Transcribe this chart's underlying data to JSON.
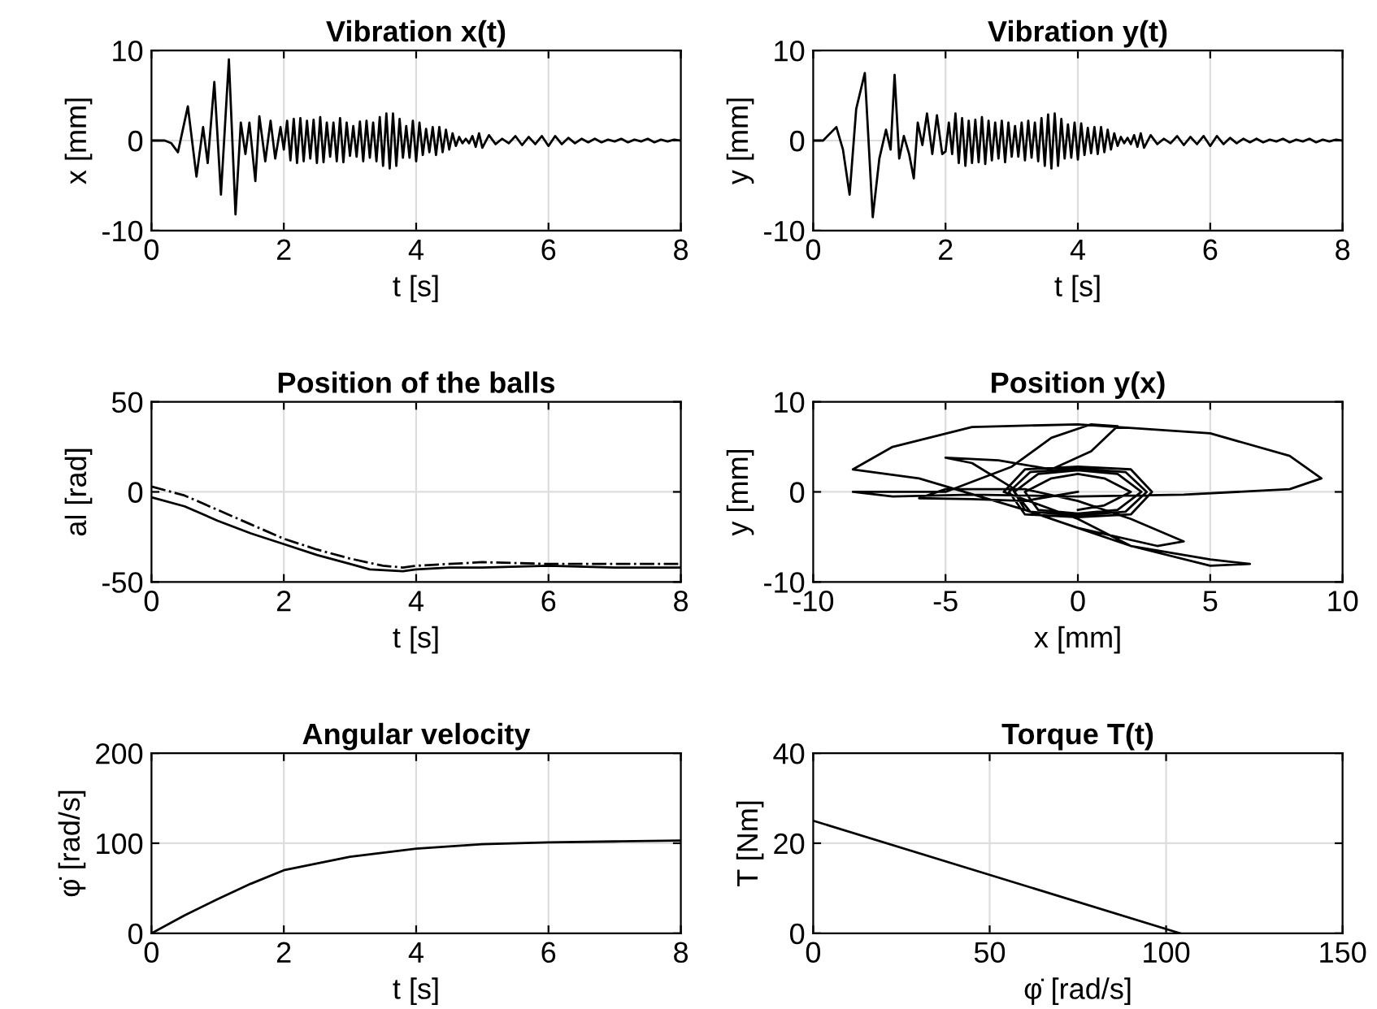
{
  "chart_data": [
    {
      "type": "line",
      "title": "Vibration x(t)",
      "xlabel": "t [s]",
      "ylabel": "x [mm]",
      "xlim": [
        0,
        8
      ],
      "ylim": [
        -10,
        10
      ],
      "xticks": [
        0,
        2,
        4,
        6,
        8
      ],
      "yticks": [
        -10,
        0,
        10
      ],
      "grid": true,
      "series": [
        {
          "color": "#000000",
          "line_style": "solid",
          "x": [
            0,
            0.2,
            0.3,
            0.4,
            0.55,
            0.68,
            0.78,
            0.85,
            0.95,
            1.05,
            1.17,
            1.27,
            1.35,
            1.42,
            1.48,
            1.57,
            1.63,
            1.72,
            1.8,
            1.87,
            1.95,
            2.0,
            2.05,
            2.1,
            2.15,
            2.2,
            2.25,
            2.3,
            2.35,
            2.4,
            2.45,
            2.5,
            2.55,
            2.6,
            2.65,
            2.7,
            2.75,
            2.8,
            2.85,
            2.9,
            2.95,
            3.0,
            3.05,
            3.1,
            3.15,
            3.2,
            3.25,
            3.3,
            3.35,
            3.4,
            3.45,
            3.5,
            3.55,
            3.6,
            3.65,
            3.7,
            3.75,
            3.8,
            3.85,
            3.9,
            3.95,
            4.0,
            4.05,
            4.1,
            4.15,
            4.2,
            4.25,
            4.3,
            4.35,
            4.4,
            4.45,
            4.5,
            4.55,
            4.6,
            4.65,
            4.7,
            4.75,
            4.8,
            4.85,
            4.9,
            4.95,
            5.0,
            5.1,
            5.2,
            5.3,
            5.4,
            5.5,
            5.6,
            5.7,
            5.8,
            5.9,
            6.0,
            6.1,
            6.2,
            6.3,
            6.4,
            6.5,
            6.6,
            6.7,
            6.8,
            6.9,
            7.0,
            7.1,
            7.2,
            7.3,
            7.4,
            7.5,
            7.6,
            7.7,
            7.8,
            7.9,
            8.0
          ],
          "values": [
            0,
            0,
            -0.3,
            -1.3,
            3.8,
            -4,
            1.5,
            -2.5,
            6.5,
            -6,
            9,
            -8.2,
            2,
            -1.5,
            2,
            -4.5,
            2.7,
            -2.3,
            2.2,
            -2,
            1.5,
            -1.0,
            2.2,
            -2.2,
            2.4,
            -2.5,
            2.5,
            -2.3,
            2.2,
            -2.0,
            2.3,
            -2.5,
            2.6,
            -2.4,
            2.0,
            -1.8,
            2.0,
            -2.3,
            2.5,
            -2.4,
            2.0,
            -1.7,
            1.6,
            -1.8,
            2.1,
            -2.3,
            2.2,
            -1.9,
            2.0,
            -2.3,
            2.6,
            -2.8,
            3.0,
            -3.1,
            3.0,
            -2.8,
            2.4,
            -1.9,
            1.6,
            -1.9,
            2.2,
            -2.3,
            2.0,
            -1.6,
            1.3,
            -1.3,
            1.5,
            -1.6,
            1.5,
            -1.3,
            1.2,
            -1.0,
            0.8,
            -0.6,
            0.4,
            -0.3,
            0.2,
            -0.3,
            0.5,
            -0.7,
            0.8,
            -0.8,
            0.6,
            -0.4,
            0.2,
            -0.3,
            0.5,
            -0.5,
            0.4,
            -0.4,
            0.5,
            -0.6,
            0.5,
            -0.4,
            0.3,
            -0.3,
            0.2,
            -0.2,
            0.2,
            -0.2,
            0.1,
            -0.1,
            0.2,
            -0.2,
            0.1,
            -0.1,
            0.2,
            -0.2,
            0.1,
            -0.1,
            0.1,
            0
          ]
        }
      ]
    },
    {
      "type": "line",
      "title": "Vibration y(t)",
      "xlabel": "t [s]",
      "ylabel": "y [mm]",
      "xlim": [
        0,
        8
      ],
      "ylim": [
        -10,
        10
      ],
      "xticks": [
        0,
        2,
        4,
        6,
        8
      ],
      "yticks": [
        -10,
        0,
        10
      ],
      "grid": true,
      "series": [
        {
          "color": "#000000",
          "line_style": "solid",
          "x": [
            0,
            0.15,
            0.35,
            0.45,
            0.55,
            0.65,
            0.78,
            0.9,
            1.0,
            1.1,
            1.17,
            1.23,
            1.3,
            1.37,
            1.45,
            1.52,
            1.58,
            1.65,
            1.72,
            1.8,
            1.87,
            1.95,
            2.0,
            2.05,
            2.1,
            2.15,
            2.2,
            2.25,
            2.3,
            2.35,
            2.4,
            2.45,
            2.5,
            2.55,
            2.6,
            2.65,
            2.7,
            2.75,
            2.8,
            2.85,
            2.9,
            2.95,
            3.0,
            3.05,
            3.1,
            3.15,
            3.2,
            3.25,
            3.3,
            3.35,
            3.4,
            3.45,
            3.5,
            3.55,
            3.6,
            3.65,
            3.7,
            3.75,
            3.8,
            3.85,
            3.9,
            3.95,
            4.0,
            4.05,
            4.1,
            4.15,
            4.2,
            4.25,
            4.3,
            4.35,
            4.4,
            4.45,
            4.5,
            4.55,
            4.6,
            4.65,
            4.7,
            4.75,
            4.8,
            4.85,
            4.9,
            4.95,
            5.0,
            5.1,
            5.2,
            5.3,
            5.4,
            5.5,
            5.6,
            5.7,
            5.8,
            5.9,
            6.0,
            6.1,
            6.2,
            6.3,
            6.4,
            6.5,
            6.6,
            6.7,
            6.8,
            6.9,
            7.0,
            7.1,
            7.2,
            7.3,
            7.4,
            7.5,
            7.6,
            7.7,
            7.8,
            7.9,
            8.0
          ],
          "values": [
            0,
            0,
            1.5,
            -1,
            -6,
            3.5,
            7.5,
            -8.5,
            -2,
            1.2,
            -1,
            7.3,
            -2,
            0.5,
            -1.5,
            -4.2,
            2,
            -0.5,
            3,
            -1.5,
            2.8,
            -1.5,
            -1.2,
            2.0,
            -1.5,
            3.0,
            -2.5,
            2.5,
            -2.8,
            2.2,
            -2.5,
            2.3,
            -2.4,
            2.6,
            -2.6,
            2.2,
            -2.2,
            2.0,
            -2.0,
            2.2,
            -2.4,
            2.0,
            -1.8,
            1.6,
            -1.8,
            2.0,
            -2.2,
            2.2,
            -1.9,
            2.0,
            -2.3,
            2.5,
            -2.8,
            2.9,
            -3.1,
            3.0,
            -2.8,
            2.4,
            -2.0,
            1.8,
            -1.9,
            2.0,
            -2.1,
            1.9,
            -1.6,
            1.4,
            -1.4,
            1.5,
            -1.5,
            1.5,
            -1.3,
            1.2,
            -1.0,
            0.8,
            -0.6,
            0.4,
            -0.3,
            0.3,
            -0.4,
            0.6,
            -0.7,
            0.8,
            -0.8,
            0.6,
            -0.4,
            0.2,
            -0.3,
            0.5,
            -0.5,
            0.4,
            -0.4,
            0.5,
            -0.6,
            0.5,
            -0.4,
            0.3,
            -0.3,
            0.2,
            -0.2,
            0.2,
            -0.2,
            0.1,
            -0.1,
            0.2,
            -0.2,
            0.1,
            -0.1,
            0.2,
            -0.2,
            0.1,
            -0.1,
            0.1,
            0
          ]
        }
      ]
    },
    {
      "type": "line",
      "title": "Position of the balls",
      "xlabel": "t [s]",
      "ylabel": "al [rad]",
      "xlim": [
        0,
        8
      ],
      "ylim": [
        -50,
        50
      ],
      "xticks": [
        0,
        2,
        4,
        6,
        8
      ],
      "yticks": [
        -50,
        0,
        50
      ],
      "grid": true,
      "series": [
        {
          "color": "#000000",
          "line_style": "solid",
          "x": [
            0,
            0.5,
            1,
            1.5,
            2,
            2.5,
            3,
            3.3,
            3.8,
            4,
            4.5,
            5,
            6,
            7,
            8
          ],
          "values": [
            -3,
            -8,
            -16,
            -23,
            -29,
            -35,
            -40,
            -43,
            -44,
            -43,
            -42,
            -42,
            -41,
            -42,
            -42
          ]
        },
        {
          "color": "#000000",
          "line_style": "dashdot",
          "x": [
            0,
            0.5,
            1,
            1.5,
            2,
            2.5,
            3,
            3.5,
            3.8,
            4,
            4.5,
            5,
            6,
            7,
            8
          ],
          "values": [
            3,
            -2,
            -10,
            -18,
            -26,
            -32,
            -37,
            -41,
            -42,
            -41,
            -40,
            -39,
            -40,
            -40,
            -40
          ]
        }
      ]
    },
    {
      "type": "line",
      "title": "Position y(x)",
      "xlabel": "x [mm]",
      "ylabel": "y [mm]",
      "xlim": [
        -10,
        10
      ],
      "ylim": [
        -10,
        10
      ],
      "xticks": [
        -10,
        -5,
        0,
        5,
        10
      ],
      "yticks": [
        -10,
        0,
        10
      ],
      "grid": true,
      "series": [
        {
          "color": "#000000",
          "line_style": "solid",
          "x": [
            0,
            -2,
            -4,
            -6,
            -5,
            -2,
            0,
            2,
            4,
            3,
            0,
            -2,
            -2.5,
            -4,
            -5,
            -3,
            -1,
            0.5,
            1.5,
            0.5,
            -1,
            -2.5,
            -5,
            -8,
            -8.5,
            -7,
            -4,
            0,
            4,
            8,
            9.2,
            8,
            5,
            0,
            -4,
            -7,
            -8.5,
            -6,
            -2,
            0,
            2,
            5,
            6.5,
            5,
            2,
            0,
            -2.8,
            -2,
            0,
            2,
            2.8,
            2,
            0,
            -2,
            -2.6,
            -1.8,
            0,
            1.8,
            2.6,
            1.8,
            0,
            -1.8,
            -2.4,
            -1.5,
            0,
            1.5,
            2.4,
            1.5,
            0,
            -1.5,
            -2,
            -1,
            0,
            1,
            2,
            1,
            0
          ],
          "values": [
            0,
            -1,
            -0.8,
            -0.7,
            0.3,
            0.3,
            -1,
            -3,
            -5.5,
            -6,
            -4,
            -2,
            0.5,
            3.2,
            3.8,
            3.5,
            2.5,
            4.5,
            7.3,
            7.5,
            6,
            2.8,
            0,
            0,
            0,
            -0.5,
            -0.3,
            -0.5,
            -0.3,
            0.3,
            1.5,
            4,
            6.5,
            7.5,
            7.2,
            5,
            2.5,
            1.5,
            -2,
            -4,
            -6,
            -7.5,
            -8,
            -8.2,
            -6,
            -3,
            0,
            2.5,
            2.8,
            2.5,
            0,
            -2.5,
            -2.8,
            -2.5,
            0,
            2.2,
            2.6,
            2.2,
            0,
            -2.2,
            -2.6,
            -2.2,
            0,
            2,
            2.4,
            2,
            0,
            -2,
            -2.4,
            -2,
            0,
            1.5,
            2,
            1.5,
            0,
            -1.5,
            -2
          ]
        }
      ]
    },
    {
      "type": "line",
      "title": "Angular velocity",
      "xlabel": "t [s]",
      "ylabel": "φ̇ [rad/s]",
      "xlim": [
        0,
        8
      ],
      "ylim": [
        0,
        200
      ],
      "xticks": [
        0,
        2,
        4,
        6,
        8
      ],
      "yticks": [
        0,
        100,
        200
      ],
      "grid": true,
      "series": [
        {
          "color": "#000000",
          "line_style": "solid",
          "x": [
            0,
            0.5,
            1,
            1.5,
            2,
            3,
            4,
            5,
            6,
            7,
            8
          ],
          "values": [
            0,
            20,
            38,
            55,
            70,
            85,
            94,
            99,
            101,
            102,
            103
          ]
        }
      ]
    },
    {
      "type": "line",
      "title": "Torque T(t)",
      "xlabel": "φ̇ [rad/s]",
      "ylabel": "T [Nm]",
      "xlim": [
        0,
        150
      ],
      "ylim": [
        0,
        40
      ],
      "xticks": [
        0,
        50,
        100,
        150
      ],
      "yticks": [
        0,
        20,
        40
      ],
      "grid": true,
      "series": [
        {
          "color": "#000000",
          "line_style": "solid",
          "x": [
            0,
            104
          ],
          "values": [
            25,
            0
          ]
        }
      ]
    }
  ]
}
